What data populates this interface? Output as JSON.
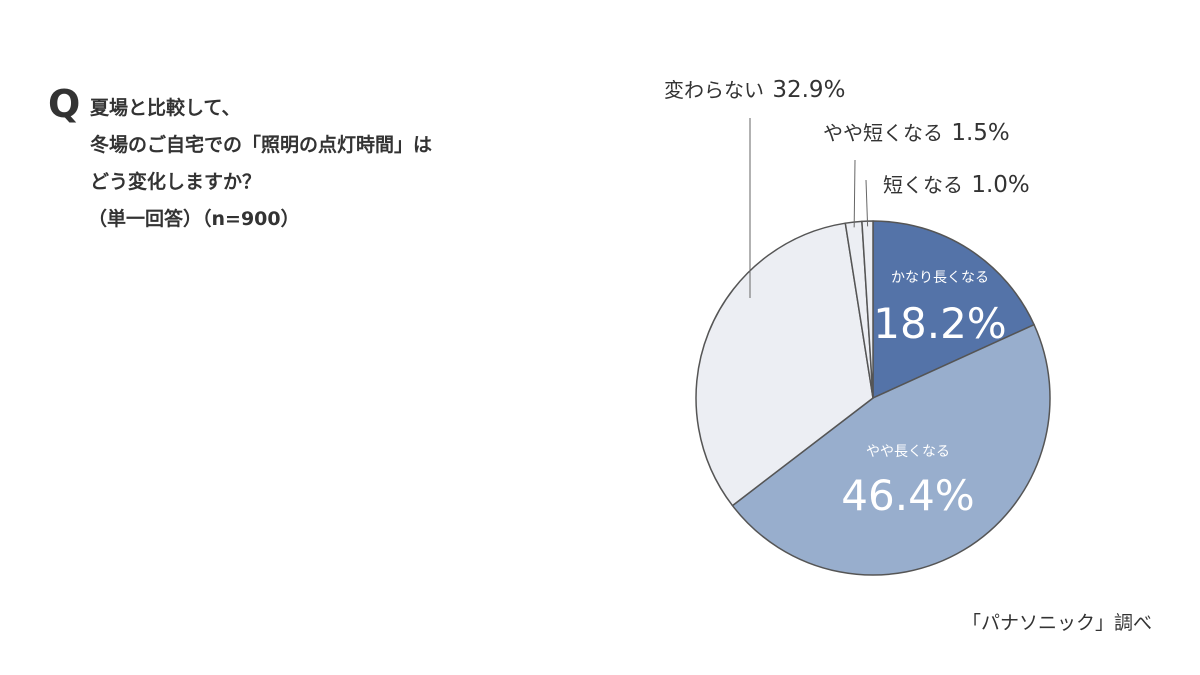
{
  "question": {
    "mark": "Q",
    "lines": [
      "夏場と比較して、",
      "冬場のご自宅での「照明の点灯時間」は",
      "どう変化しますか？",
      "（単一回答）（n=900）"
    ]
  },
  "source": "「パナソニック」調べ",
  "chart_data": {
    "type": "pie",
    "title": "",
    "slices": [
      {
        "label": "かなり長くなる",
        "value": 18.2,
        "value_label": "18.2%",
        "color": "#5473a8",
        "label_position": "inside",
        "text_color": "#ffffff"
      },
      {
        "label": "やや長くなる",
        "value": 46.4,
        "value_label": "46.4%",
        "color": "#98aecd",
        "label_position": "inside",
        "text_color": "#ffffff"
      },
      {
        "label": "変わらない",
        "value": 32.9,
        "value_label": "32.9%",
        "color": "#eceef3",
        "label_position": "outside",
        "text_color": "#333333"
      },
      {
        "label": "やや短くなる",
        "value": 1.5,
        "value_label": "1.5%",
        "color": "#eceef3",
        "label_position": "outside",
        "text_color": "#333333"
      },
      {
        "label": "短くなる",
        "value": 1.0,
        "value_label": "1.0%",
        "color": "#eceef3",
        "label_position": "outside",
        "text_color": "#333333"
      }
    ],
    "start_angle": "12 o'clock",
    "direction": "clockwise",
    "outline_color": "#555555",
    "legend": "none"
  }
}
